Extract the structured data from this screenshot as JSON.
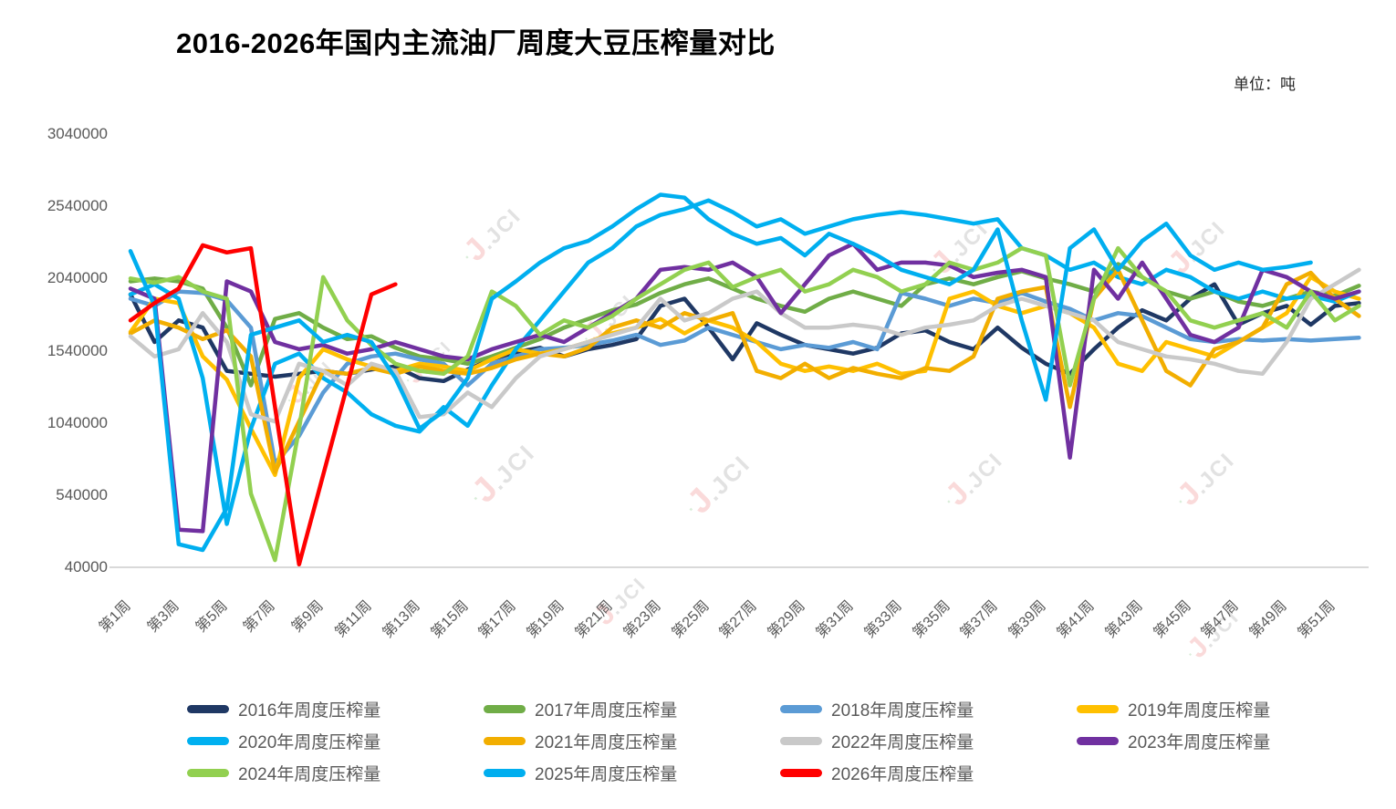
{
  "title": "2016-2026年国内主流油厂周度大豆压榨量对比",
  "unit_label": "单位：吨",
  "watermark_logo": {
    "glyph": "J",
    "accent": "·",
    "text": ".JCI"
  },
  "chart_data": {
    "type": "line",
    "title": "2016-2026年国内主流油厂周度大豆压榨量对比",
    "unit": "吨",
    "xlabel": "",
    "ylabel": "",
    "ylim": [
      40000,
      3040000
    ],
    "y_ticks": [
      3040000,
      2540000,
      2040000,
      1540000,
      1040000,
      540000,
      40000
    ],
    "weeks": 52,
    "x_tick_labels": [
      "第1周",
      "第3周",
      "第5周",
      "第7周",
      "第9周",
      "第11周",
      "第13周",
      "第15周",
      "第17周",
      "第19周",
      "第21周",
      "第23周",
      "第25周",
      "第27周",
      "第29周",
      "第31周",
      "第33周",
      "第35周",
      "第37周",
      "第39周",
      "第41周",
      "第43周",
      "第45周",
      "第47周",
      "第49周",
      "第51周"
    ],
    "grid": false,
    "legend_position": "bottom",
    "series": [
      {
        "name": "2016年周度压榨量",
        "color": "#1F3864",
        "values": [
          1930000,
          1600000,
          1750000,
          1700000,
          1400000,
          1380000,
          1360000,
          1380000,
          1400000,
          1380000,
          1410000,
          1430000,
          1350000,
          1330000,
          1410000,
          1480000,
          1530000,
          1560000,
          1500000,
          1550000,
          1580000,
          1620000,
          1850000,
          1900000,
          1700000,
          1480000,
          1730000,
          1650000,
          1580000,
          1550000,
          1520000,
          1560000,
          1660000,
          1680000,
          1600000,
          1550000,
          1700000,
          1560000,
          1450000,
          1380000,
          1550000,
          1700000,
          1820000,
          1750000,
          1900000,
          2000000,
          1720000,
          1800000,
          1850000,
          1720000,
          1850000,
          1870000
        ]
      },
      {
        "name": "2017年周度压榨量",
        "color": "#70AD47",
        "values": [
          2020000,
          2040000,
          2020000,
          1970000,
          1700000,
          1300000,
          1760000,
          1800000,
          1700000,
          1620000,
          1640000,
          1560000,
          1500000,
          1480000,
          1450000,
          1500000,
          1560000,
          1620000,
          1700000,
          1760000,
          1820000,
          1860000,
          1940000,
          2000000,
          2040000,
          1970000,
          1900000,
          1850000,
          1810000,
          1900000,
          1950000,
          1900000,
          1850000,
          2000000,
          2040000,
          2000000,
          2050000,
          2090000,
          2040000,
          2000000,
          1950000,
          2140000,
          2050000,
          1950000,
          1900000,
          1950000,
          1880000,
          1850000,
          1900000,
          1950000,
          1920000,
          1990000
        ]
      },
      {
        "name": "2018年周度压榨量",
        "color": "#5B9BD5",
        "values": [
          1900000,
          1850000,
          1950000,
          1940000,
          1890000,
          1700000,
          760000,
          950000,
          1250000,
          1450000,
          1500000,
          1520000,
          1480000,
          1450000,
          1300000,
          1450000,
          1500000,
          1550000,
          1560000,
          1580000,
          1610000,
          1650000,
          1580000,
          1610000,
          1700000,
          1650000,
          1600000,
          1550000,
          1580000,
          1560000,
          1600000,
          1550000,
          1940000,
          1900000,
          1850000,
          1900000,
          1870000,
          1940000,
          1880000,
          1830000,
          1750000,
          1800000,
          1780000,
          1700000,
          1620000,
          1600000,
          1620000,
          1610000,
          1620000,
          1610000,
          1620000,
          1630000
        ]
      },
      {
        "name": "2019年周度压榨量",
        "color": "#FFC000",
        "values": [
          1670000,
          1900000,
          1870000,
          1500000,
          1340000,
          1000000,
          680000,
          1350000,
          1550000,
          1480000,
          1430000,
          1400000,
          1450000,
          1430000,
          1400000,
          1480000,
          1550000,
          1520000,
          1550000,
          1600000,
          1660000,
          1700000,
          1760000,
          1660000,
          1750000,
          1700000,
          1600000,
          1450000,
          1400000,
          1430000,
          1400000,
          1450000,
          1380000,
          1400000,
          1900000,
          1950000,
          1850000,
          1800000,
          1850000,
          1800000,
          1700000,
          1450000,
          1400000,
          1600000,
          1550000,
          1500000,
          1600000,
          1700000,
          1800000,
          2050000,
          1950000,
          1900000
        ]
      },
      {
        "name": "2020年周度压榨量",
        "color": "#00B0F0",
        "values": [
          1930000,
          2000000,
          1900000,
          1350000,
          340000,
          1000000,
          1450000,
          1520000,
          1350000,
          1250000,
          1100000,
          1020000,
          980000,
          1150000,
          1020000,
          1300000,
          1550000,
          1750000,
          1950000,
          2150000,
          2250000,
          2400000,
          2480000,
          2520000,
          2580000,
          2500000,
          2400000,
          2450000,
          2350000,
          2400000,
          2450000,
          2480000,
          2500000,
          2480000,
          2450000,
          2420000,
          2450000,
          2250000,
          2200000,
          2100000,
          2150000,
          2050000,
          2000000,
          2100000,
          2050000,
          1950000,
          1900000,
          1950000,
          1900000,
          1920000,
          1880000,
          1950000
        ]
      },
      {
        "name": "2021年周度压榨量",
        "color": "#F2AE00",
        "values": [
          1660000,
          1750000,
          1700000,
          1620000,
          1680000,
          1500000,
          700000,
          1050000,
          1400000,
          1380000,
          1420000,
          1380000,
          1430000,
          1400000,
          1380000,
          1420000,
          1480000,
          1520000,
          1500000,
          1560000,
          1700000,
          1750000,
          1700000,
          1800000,
          1750000,
          1800000,
          1400000,
          1350000,
          1450000,
          1350000,
          1420000,
          1380000,
          1350000,
          1420000,
          1400000,
          1500000,
          1900000,
          1950000,
          1980000,
          1150000,
          1900000,
          2100000,
          1750000,
          1400000,
          1300000,
          1550000,
          1600000,
          1700000,
          2000000,
          2080000,
          1900000,
          1780000
        ]
      },
      {
        "name": "2022年周度压榨量",
        "color": "#C9C9C9",
        "values": [
          1640000,
          1500000,
          1550000,
          1800000,
          1600000,
          1100000,
          1050000,
          1450000,
          1400000,
          1300000,
          1450000,
          1400000,
          1080000,
          1100000,
          1250000,
          1150000,
          1350000,
          1500000,
          1550000,
          1600000,
          1650000,
          1700000,
          1900000,
          1750000,
          1800000,
          1900000,
          1950000,
          1800000,
          1700000,
          1700000,
          1720000,
          1700000,
          1650000,
          1700000,
          1720000,
          1750000,
          1850000,
          1900000,
          1850000,
          1800000,
          1750000,
          1600000,
          1550000,
          1500000,
          1480000,
          1450000,
          1400000,
          1380000,
          1600000,
          1900000,
          2000000,
          2100000
        ]
      },
      {
        "name": "2023年周度压榨量",
        "color": "#7030A0",
        "values": [
          1970000,
          1900000,
          300000,
          290000,
          2020000,
          1950000,
          1600000,
          1550000,
          1580000,
          1520000,
          1550000,
          1600000,
          1550000,
          1500000,
          1480000,
          1550000,
          1600000,
          1650000,
          1600000,
          1700000,
          1800000,
          1900000,
          2100000,
          2120000,
          2100000,
          2150000,
          2050000,
          1800000,
          2000000,
          2200000,
          2280000,
          2100000,
          2150000,
          2150000,
          2130000,
          2050000,
          2080000,
          2100000,
          2050000,
          800000,
          2100000,
          1900000,
          2150000,
          1900000,
          1650000,
          1600000,
          1700000,
          2100000,
          2050000,
          1950000,
          1900000,
          1950000
        ]
      },
      {
        "name": "2024年周度压榨量",
        "color": "#92D050",
        "values": [
          2040000,
          2010000,
          2050000,
          1950000,
          1900000,
          550000,
          90000,
          1000000,
          2050000,
          1750000,
          1580000,
          1450000,
          1400000,
          1380000,
          1500000,
          1950000,
          1850000,
          1650000,
          1750000,
          1700000,
          1780000,
          1900000,
          2000000,
          2100000,
          2150000,
          1980000,
          2050000,
          2100000,
          1950000,
          2000000,
          2100000,
          2050000,
          1950000,
          2000000,
          2150000,
          2100000,
          2150000,
          2250000,
          2200000,
          1300000,
          1900000,
          2250000,
          2050000,
          1950000,
          1750000,
          1700000,
          1750000,
          1800000,
          1700000,
          1950000,
          1750000,
          1850000
        ]
      },
      {
        "name": "2025年周度压榨量",
        "color": "#00AEEF",
        "values": [
          2230000,
          1850000,
          200000,
          160000,
          450000,
          1650000,
          1700000,
          1750000,
          1600000,
          1650000,
          1600000,
          1350000,
          1000000,
          1120000,
          1350000,
          1900000,
          2020000,
          2150000,
          2250000,
          2300000,
          2400000,
          2520000,
          2620000,
          2600000,
          2450000,
          2350000,
          2280000,
          2320000,
          2200000,
          2350000,
          2280000,
          2200000,
          2100000,
          2050000,
          2000000,
          2100000,
          2380000,
          1750000,
          1200000,
          2250000,
          2380000,
          2100000,
          2300000,
          2420000,
          2200000,
          2100000,
          2150000,
          2100000,
          2120000,
          2150000,
          null,
          null
        ]
      },
      {
        "name": "2026年周度压榨量",
        "color": "#FF0000",
        "values": [
          1750000,
          1870000,
          1970000,
          2270000,
          2220000,
          2250000,
          1150000,
          60000,
          680000,
          1300000,
          1930000,
          2000000,
          null,
          null,
          null,
          null,
          null,
          null,
          null,
          null,
          null,
          null,
          null,
          null,
          null,
          null,
          null,
          null,
          null,
          null,
          null,
          null,
          null,
          null,
          null,
          null,
          null,
          null,
          null,
          null,
          null,
          null,
          null,
          null,
          null,
          null,
          null,
          null,
          null,
          null,
          null,
          null
        ]
      }
    ]
  }
}
